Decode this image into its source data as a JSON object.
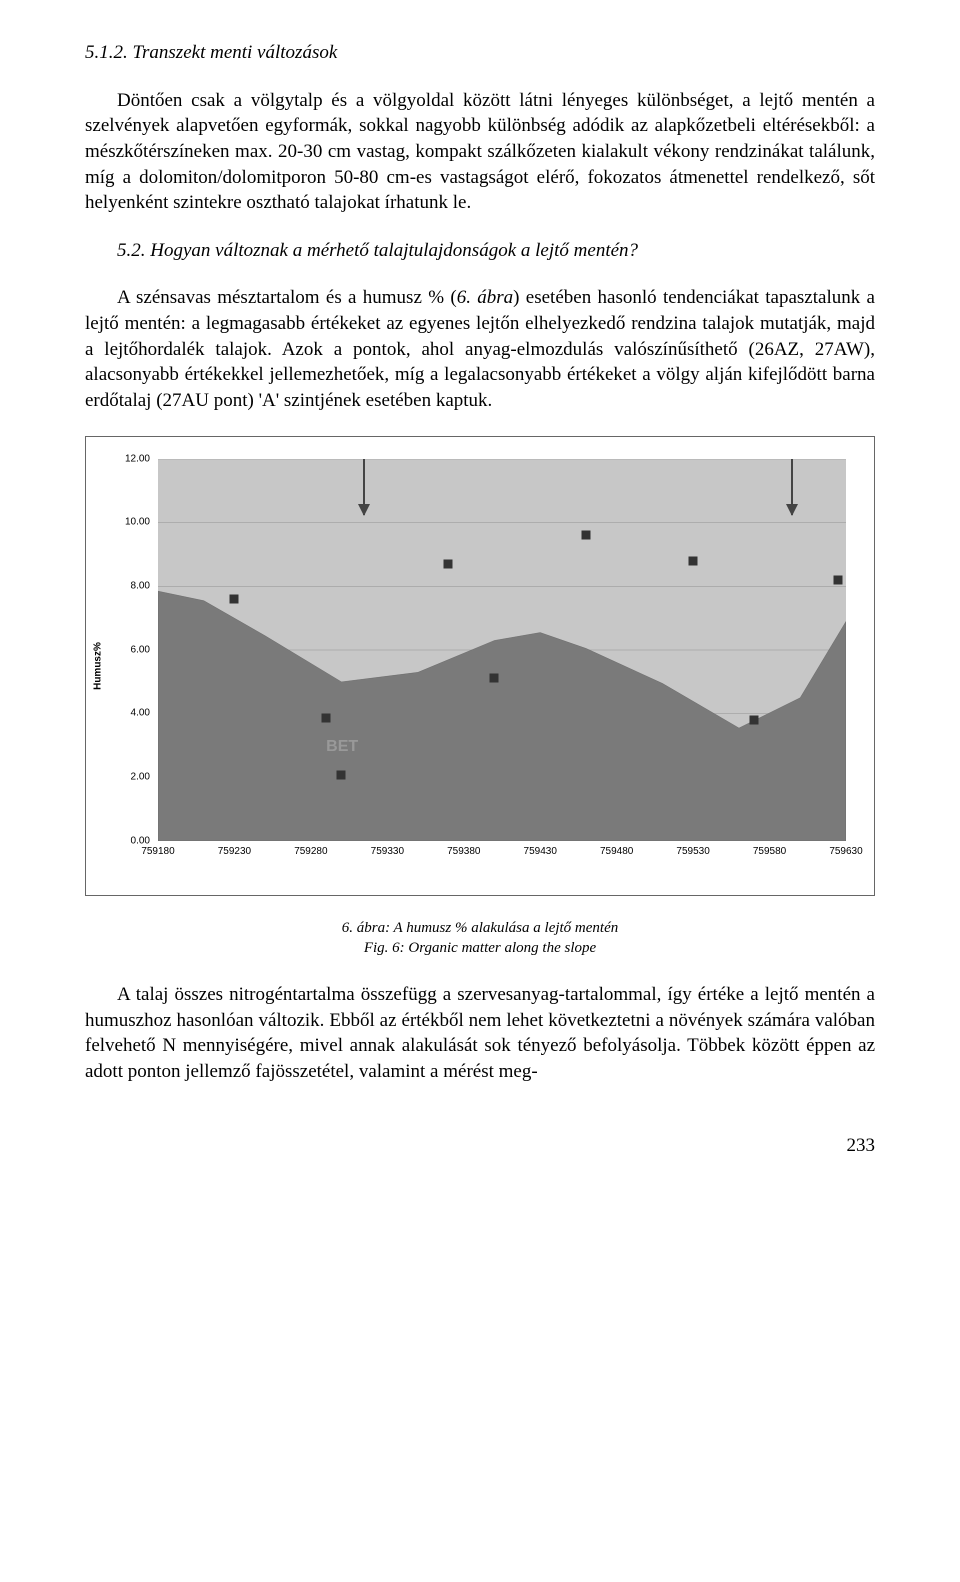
{
  "section_title": "5.1.2. Transzekt menti változások",
  "para1": "Döntően csak a völgytalp és a völgyoldal között látni lényeges különbséget, a lejtő mentén a szelvények alapvetően egyformák, sokkal nagyobb különbség adódik az alapkőzetbeli eltérésekből: a mészkőtérszíneken max. 20-30 cm vastag, kompakt szálkőzeten kialakult vékony rendzinákat találunk, míg a dolomiton/dolomitporon 50-80 cm-es vastagságot elérő, fokozatos átmenettel rendelkező, sőt helyenként szintekre osztható talajokat írhatunk le.",
  "subheading": "5.2. Hogyan változnak a mérhető talajtulajdonságok a lejtő mentén?",
  "para2_part1": "A szénsavas mésztartalom és a humusz % (",
  "para2_italic": "6. ábra",
  "para2_part2": ") esetében hasonló tendenciákat tapasztalunk a lejtő mentén: a legmagasabb értékeket az egyenes lejtőn elhelyezkedő rendzina talajok mutatják, majd a lejtőhordalék talajok. Azok a pontok, ahol anyag-elmozdulás valószínűsíthető (26AZ, 27AW), alacsonyabb értékekkel jellemezhetőek, míg a legalacsonyabb értékeket a völgy alján kifejlődött barna erdőtalaj (27AU pont) 'A' szintjének esetében kaptuk.",
  "chart": {
    "type": "scatter-over-profile",
    "ylabel": "Humusz%",
    "xlim": [
      759180,
      759630
    ],
    "ylim": [
      0,
      12
    ],
    "xtick_step": 50,
    "ytick_step": 2,
    "xticks": [
      "759180",
      "759230",
      "759280",
      "759330",
      "759380",
      "759430",
      "759480",
      "759530",
      "759580",
      "759630"
    ],
    "yticks": [
      "0.00",
      "2.00",
      "4.00",
      "6.00",
      "8.00",
      "10.00",
      "12.00"
    ],
    "background_color": "#c7c7c7",
    "grid_color": "#5f5f5f",
    "profile_color": "#7a7a7a",
    "marker_color": "#333333",
    "marker_size": 9,
    "profile": [
      [
        759180,
        7.85
      ],
      [
        759210,
        7.55
      ],
      [
        759250,
        6.45
      ],
      [
        759300,
        5.0
      ],
      [
        759350,
        5.3
      ],
      [
        759400,
        6.3
      ],
      [
        759430,
        6.55
      ],
      [
        759460,
        6.05
      ],
      [
        759510,
        4.95
      ],
      [
        759560,
        3.55
      ],
      [
        759600,
        4.5
      ],
      [
        759630,
        6.9
      ]
    ],
    "points": [
      [
        759230,
        7.6
      ],
      [
        759290,
        3.85
      ],
      [
        759300,
        2.05
      ],
      [
        759370,
        8.7
      ],
      [
        759400,
        5.1
      ],
      [
        759460,
        9.6
      ],
      [
        759530,
        8.8
      ],
      [
        759570,
        3.8
      ],
      [
        759625,
        8.2
      ]
    ],
    "arrows_x": [
      759315,
      759595
    ],
    "bet_label": "BET",
    "bet_pos": [
      759290,
      3.3
    ]
  },
  "caption_line1": "6. ábra: A humusz % alakulása a lejtő mentén",
  "caption_line2": "Fig. 6: Organic matter along the slope",
  "para3": "A talaj összes nitrogéntartalma összefügg a szervesanyag-tartalommal, így értéke a lejtő mentén a humuszhoz hasonlóan változik. Ebből az értékből nem lehet következtetni a növények számára valóban felvehető N mennyiségére, mivel annak alakulását sok tényező befolyásolja. Többek között éppen az adott ponton jellemző fajösszetétel, valamint a mérést meg-",
  "pagenum": "233"
}
